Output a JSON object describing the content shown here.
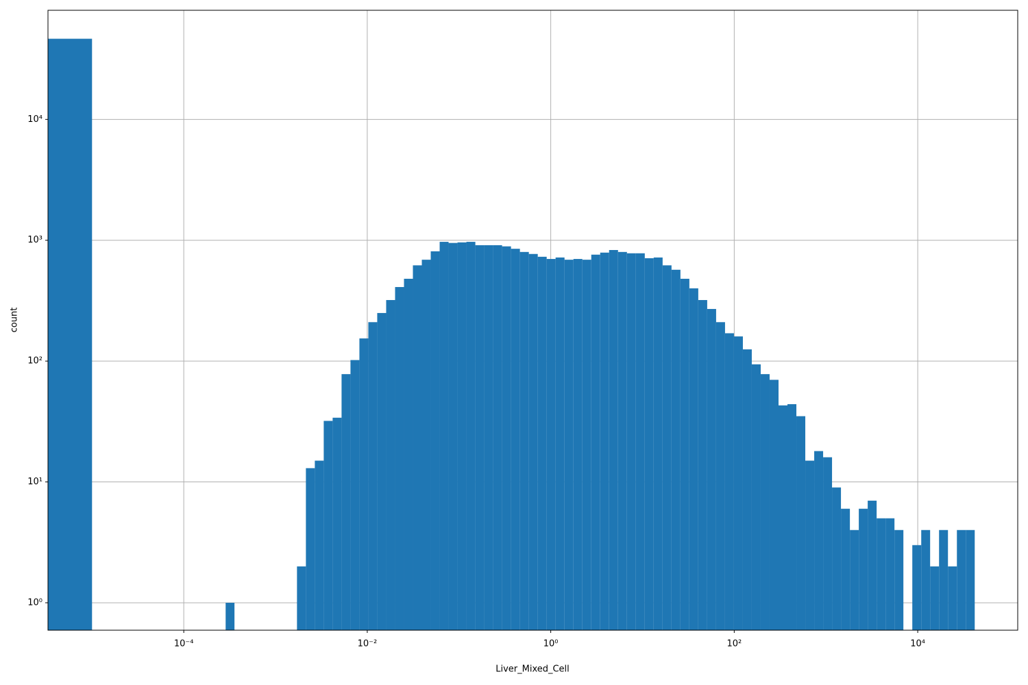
{
  "chart_data": {
    "type": "histogram",
    "x_label": "Liver_Mixed_Cell",
    "y_label": "count",
    "xscale": "log",
    "yscale": "log",
    "grid": true,
    "color": "#1f77b4",
    "bins": [
      3.31e-06,
      1e-05,
      0.000286,
      0.000357,
      0.001714,
      0.002144,
      0.002682,
      0.003354,
      0.004195,
      0.005248,
      0.006564,
      0.00821,
      0.01027,
      0.01284,
      0.01607,
      0.0201,
      0.02514,
      0.03144,
      0.03933,
      0.0492,
      0.06154,
      0.07697,
      0.09629,
      0.1204,
      0.1507,
      0.1884,
      0.2357,
      0.2948,
      0.3688,
      0.4613,
      0.577,
      0.7218,
      0.9029,
      1.129,
      1.413,
      1.767,
      2.21,
      2.765,
      3.458,
      4.325,
      5.411,
      6.768,
      8.467,
      10.59,
      13.24,
      16.57,
      20.72,
      25.92,
      32.42,
      40.55,
      50.73,
      63.46,
      79.38,
      99.27,
      124.2,
      155.3,
      194.3,
      243.0,
      304.0,
      380.2,
      475.6,
      594.9,
      744.2,
      930.8,
      1164,
      1456,
      1822,
      2279,
      2850,
      3565,
      4460,
      5578,
      6978,
      8728,
      10920,
      13650,
      17080,
      21360,
      26730,
      33420,
      41810
    ],
    "counts": [
      46500,
      0,
      1,
      0,
      2,
      13,
      15,
      32,
      34,
      78,
      102,
      154,
      210,
      250,
      320,
      410,
      480,
      620,
      690,
      810,
      970,
      950,
      960,
      970,
      910,
      910,
      910,
      890,
      850,
      800,
      770,
      730,
      700,
      720,
      690,
      700,
      690,
      760,
      790,
      830,
      800,
      780,
      780,
      710,
      720,
      620,
      570,
      480,
      400,
      320,
      270,
      210,
      170,
      160,
      125,
      94,
      78,
      70,
      43,
      44,
      35,
      15,
      18,
      16,
      9,
      6,
      4,
      6,
      7,
      5,
      5,
      4,
      0,
      3,
      4,
      2,
      4,
      2,
      4,
      4
    ],
    "xlim": [
      3.31e-06,
      123000
    ],
    "ylim": [
      0.593,
      80000
    ],
    "xticks": [
      {
        "value": 0.0001,
        "label": "10⁻⁴"
      },
      {
        "value": 0.01,
        "label": "10⁻²"
      },
      {
        "value": 1,
        "label": "10⁰"
      },
      {
        "value": 100,
        "label": "10²"
      },
      {
        "value": 10000,
        "label": "10⁴"
      }
    ],
    "yticks": [
      {
        "value": 1,
        "label": "10⁰"
      },
      {
        "value": 10,
        "label": "10¹"
      },
      {
        "value": 100,
        "label": "10²"
      },
      {
        "value": 1000,
        "label": "10³"
      },
      {
        "value": 10000,
        "label": "10⁴"
      }
    ]
  }
}
